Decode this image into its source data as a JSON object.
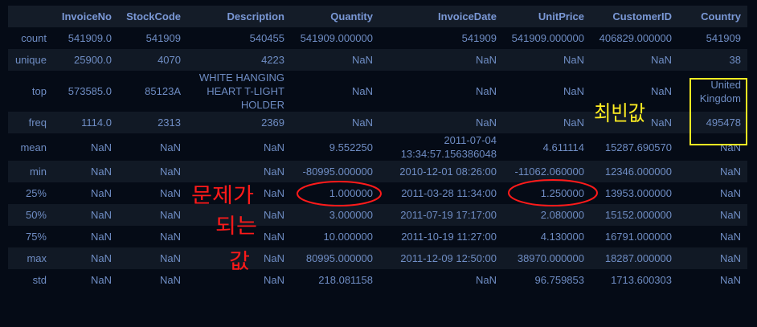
{
  "table": {
    "columns": [
      "",
      "InvoiceNo",
      "StockCode",
      "Description",
      "Quantity",
      "InvoiceDate",
      "UnitPrice",
      "CustomerID",
      "Country"
    ],
    "rows": [
      [
        "count",
        "541909.0",
        "541909",
        "540455",
        "541909.000000",
        "541909",
        "541909.000000",
        "406829.000000",
        "541909"
      ],
      [
        "unique",
        "25900.0",
        "4070",
        "4223",
        "NaN",
        "NaN",
        "NaN",
        "NaN",
        "38"
      ],
      [
        "top",
        "573585.0",
        "85123A",
        "WHITE HANGING HEART T-LIGHT HOLDER",
        "NaN",
        "NaN",
        "NaN",
        "NaN",
        "United Kingdom"
      ],
      [
        "freq",
        "1114.0",
        "2313",
        "2369",
        "NaN",
        "NaN",
        "NaN",
        "NaN",
        "495478"
      ],
      [
        "mean",
        "NaN",
        "NaN",
        "NaN",
        "9.552250",
        "2011-07-04 13:34:57.156386048",
        "4.611114",
        "15287.690570",
        "NaN"
      ],
      [
        "min",
        "NaN",
        "NaN",
        "NaN",
        "-80995.000000",
        "2010-12-01 08:26:00",
        "-11062.060000",
        "12346.000000",
        "NaN"
      ],
      [
        "25%",
        "NaN",
        "NaN",
        "NaN",
        "1.000000",
        "2011-03-28 11:34:00",
        "1.250000",
        "13953.000000",
        "NaN"
      ],
      [
        "50%",
        "NaN",
        "NaN",
        "NaN",
        "3.000000",
        "2011-07-19 17:17:00",
        "2.080000",
        "15152.000000",
        "NaN"
      ],
      [
        "75%",
        "NaN",
        "NaN",
        "NaN",
        "10.000000",
        "2011-10-19 11:27:00",
        "4.130000",
        "16791.000000",
        "NaN"
      ],
      [
        "max",
        "NaN",
        "NaN",
        "NaN",
        "80995.000000",
        "2011-12-09 12:50:00",
        "38970.000000",
        "18287.000000",
        "NaN"
      ],
      [
        "std",
        "NaN",
        "NaN",
        "NaN",
        "218.081158",
        "NaN",
        "96.759853",
        "1713.600303",
        "NaN"
      ]
    ]
  },
  "annotations": {
    "problem_values": [
      "문제가",
      "되는",
      "값"
    ],
    "mode_label": "최빈값",
    "red": "#ff1a1a",
    "yellow": "#ffee22"
  }
}
